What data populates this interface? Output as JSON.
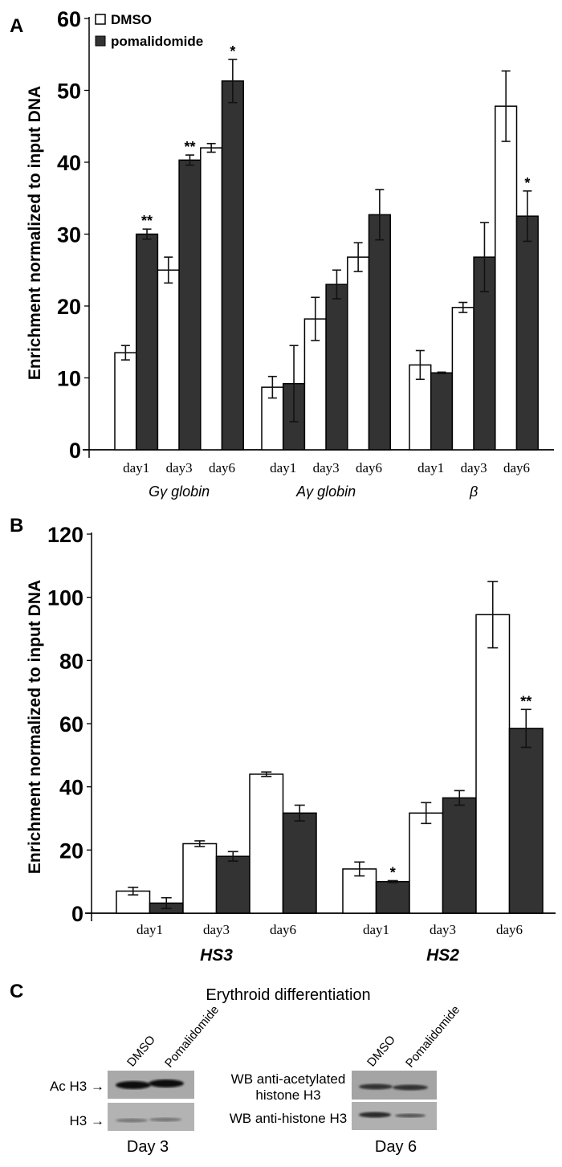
{
  "colors": {
    "dmso": "#ffffff",
    "pomalidomide": "#333333",
    "blot_bg": "#a9a9a9",
    "band": "#1e1e1e"
  },
  "legend": {
    "dmso": "DMSO",
    "pomalidomide": "pomalidomide"
  },
  "chart_data": [
    {
      "panel": "A",
      "type": "bar",
      "ylabel": "Enrichment normalized to input DNA",
      "ylim": [
        0,
        60
      ],
      "yticks": [
        0,
        10,
        20,
        30,
        40,
        50,
        60
      ],
      "grid": false,
      "legend_position": "top-left",
      "groups": [
        {
          "name": "Gγ globin",
          "categories": [
            "day1",
            "day3",
            "day6"
          ],
          "series": [
            {
              "name": "DMSO",
              "values": [
                13.5,
                25.0,
                42.0
              ],
              "errors": [
                1.0,
                1.8,
                0.6
              ],
              "stars": [
                "",
                "",
                ""
              ]
            },
            {
              "name": "pomalidomide",
              "values": [
                30.0,
                40.3,
                51.3
              ],
              "errors": [
                0.7,
                0.7,
                3.0
              ],
              "stars": [
                "**",
                "**",
                "*"
              ]
            }
          ]
        },
        {
          "name": "Aγ globin",
          "categories": [
            "day1",
            "day3",
            "day6"
          ],
          "series": [
            {
              "name": "DMSO",
              "values": [
                8.7,
                18.2,
                26.8
              ],
              "errors": [
                1.5,
                3.0,
                2.0
              ],
              "stars": [
                "",
                "",
                ""
              ]
            },
            {
              "name": "pomalidomide",
              "values": [
                9.2,
                23.0,
                32.7
              ],
              "errors": [
                5.3,
                2.0,
                3.5
              ],
              "stars": [
                "",
                "",
                ""
              ]
            }
          ]
        },
        {
          "name": "β",
          "categories": [
            "day1",
            "day3",
            "day6"
          ],
          "series": [
            {
              "name": "DMSO",
              "values": [
                11.8,
                19.8,
                47.8
              ],
              "errors": [
                2.0,
                0.7,
                4.9
              ],
              "stars": [
                "",
                "",
                ""
              ]
            },
            {
              "name": "pomalidomide",
              "values": [
                10.7,
                26.8,
                32.5
              ],
              "errors": [
                0.1,
                4.8,
                3.5
              ],
              "stars": [
                "",
                "",
                "*"
              ]
            }
          ]
        }
      ]
    },
    {
      "panel": "B",
      "type": "bar",
      "ylabel": "Enrichment normalized to input DNA",
      "ylim": [
        0,
        120
      ],
      "yticks": [
        0,
        20,
        40,
        60,
        80,
        100,
        120
      ],
      "grid": false,
      "groups": [
        {
          "name": "HS3",
          "categories": [
            "day1",
            "day3",
            "day6"
          ],
          "series": [
            {
              "name": "DMSO",
              "values": [
                7.0,
                22.0,
                44.0
              ],
              "errors": [
                1.2,
                0.9,
                0.7
              ],
              "stars": [
                "",
                "",
                ""
              ]
            },
            {
              "name": "pomalidomide",
              "values": [
                3.2,
                18.0,
                31.7
              ],
              "errors": [
                1.7,
                1.5,
                2.5
              ],
              "stars": [
                "",
                "",
                ""
              ]
            }
          ]
        },
        {
          "name": "HS2",
          "categories": [
            "day1",
            "day3",
            "day6"
          ],
          "series": [
            {
              "name": "DMSO",
              "values": [
                14.0,
                31.7,
                94.5
              ],
              "errors": [
                2.2,
                3.3,
                10.5
              ],
              "stars": [
                "",
                "",
                ""
              ]
            },
            {
              "name": "pomalidomide",
              "values": [
                10.0,
                36.5,
                58.5
              ],
              "errors": [
                0.3,
                2.3,
                6.0
              ],
              "stars": [
                "*",
                "",
                "**"
              ]
            }
          ]
        }
      ]
    }
  ],
  "panel_c": {
    "label": "C",
    "title": "Erythroid differentiation",
    "lanes": [
      "DMSO",
      "Pomalidomide"
    ],
    "row_labels": [
      "Ac H3 →",
      "H3 →"
    ],
    "wb_labels": [
      "WB anti-acetylated",
      "histone H3",
      "WB anti-histone H3"
    ],
    "blots": [
      {
        "label": "Day 3"
      },
      {
        "label": "Day 6"
      }
    ]
  }
}
